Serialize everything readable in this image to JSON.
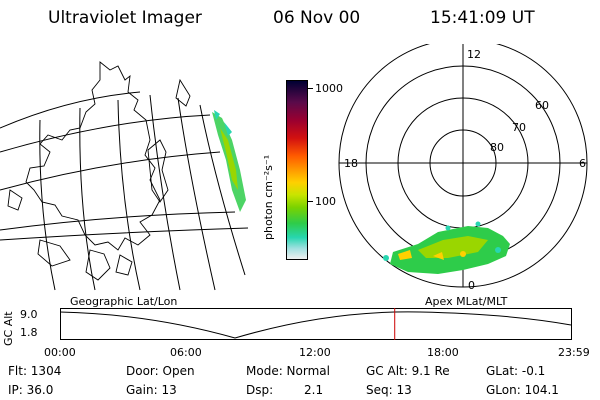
{
  "header": {
    "instrument": "Ultraviolet Imager",
    "date": "06 Nov 00",
    "time": "15:41:09 UT"
  },
  "colorbar": {
    "unit_label": "photon cm⁻²s⁻¹",
    "tick_1000": "1000",
    "tick_100": "100",
    "colors": [
      "#000033",
      "#5a0a4a",
      "#9a0030",
      "#d21010",
      "#ff5a00",
      "#ff9a00",
      "#ffd000",
      "#c8e400",
      "#7ad200",
      "#2ecc4a",
      "#28d6b0",
      "#a0e0e0",
      "#f0f0f0"
    ]
  },
  "left_panel": {
    "label": "Geographic Lat/Lon"
  },
  "polar_plot": {
    "label": "Apex MLat/MLT",
    "mlt_labels": {
      "top": "12",
      "left": "18",
      "right": "6",
      "bottom": "0"
    },
    "lat_labels": [
      "60",
      "70",
      "80"
    ]
  },
  "altitude_plot": {
    "axis_label": "GC Alt",
    "y_ticks": [
      "9.0",
      "1.8"
    ],
    "x_ticks": [
      "00:00",
      "06:00",
      "12:00",
      "18:00",
      "23:59"
    ],
    "current_time_marker_hours": 15.69,
    "marker_color": "#cc0000"
  },
  "info": {
    "flt": "Flt: 1304",
    "ip": "IP: 36.0",
    "door": "Door: Open",
    "gain": "Gain: 13",
    "mode": "Mode: Normal",
    "dsp_label": "Dsp:",
    "dsp_value": "2.1",
    "gc_alt": "GC Alt: 9.1 Re",
    "seq": "Seq: 13",
    "glat": "GLat:  -0.1",
    "glon": "GLon: 104.1"
  }
}
